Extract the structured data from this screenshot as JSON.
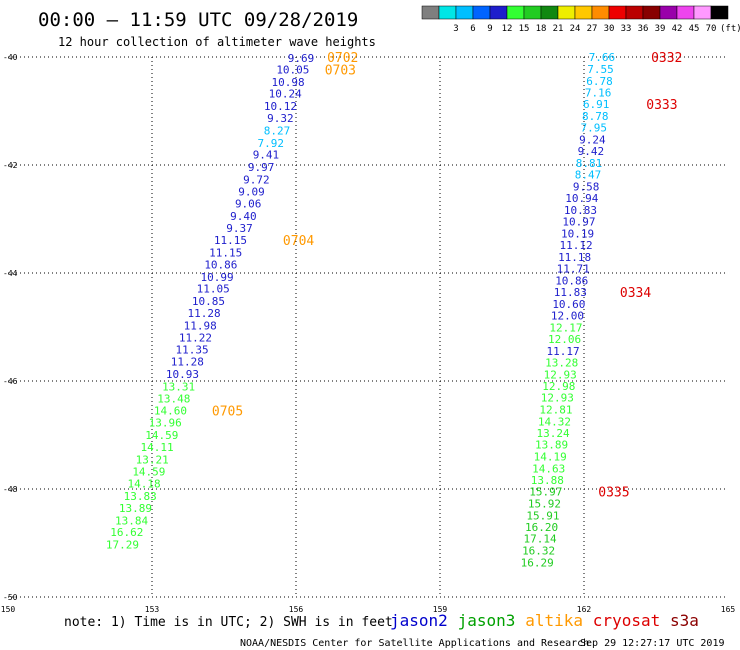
{
  "header": {
    "title": "00:00 – 11:59 UTC 09/28/2019",
    "subtitle": "12 hour collection of altimeter wave heights"
  },
  "legend": {
    "unit_label": "(ft)",
    "bins": [
      {
        "label": "",
        "color": "#7f7f7f"
      },
      {
        "label": "3",
        "color": "#00e6e6"
      },
      {
        "label": "6",
        "color": "#00bfff"
      },
      {
        "label": "9",
        "color": "#0064ff"
      },
      {
        "label": "12",
        "color": "#1e1ecc"
      },
      {
        "label": "15",
        "color": "#33ff33"
      },
      {
        "label": "18",
        "color": "#22cc22"
      },
      {
        "label": "21",
        "color": "#118811"
      },
      {
        "label": "24",
        "color": "#eeee00"
      },
      {
        "label": "27",
        "color": "#ffc800"
      },
      {
        "label": "30",
        "color": "#ff8c00"
      },
      {
        "label": "33",
        "color": "#ee0000"
      },
      {
        "label": "36",
        "color": "#bb0000"
      },
      {
        "label": "39",
        "color": "#880000"
      },
      {
        "label": "42",
        "color": "#9900aa"
      },
      {
        "label": "45",
        "color": "#ee44ee"
      },
      {
        "label": "70",
        "color": "#ff99ff"
      },
      {
        "label": "",
        "color": "#000000"
      }
    ]
  },
  "footer": {
    "note": "note: 1) Time is in UTC; 2) SWH is in feet",
    "credit": "NOAA/NESDIS Center for Satellite Applications and Research",
    "timestamp": "Sep 29 12:27:17 UTC 2019",
    "satellites": [
      {
        "name": "jason2",
        "color": "#0000cc"
      },
      {
        "name": "jason3",
        "color": "#00a000"
      },
      {
        "name": "altika",
        "color": "#ff9900"
      },
      {
        "name": "cryosat",
        "color": "#dd0000"
      },
      {
        "name": "s3a",
        "color": "#8b0000"
      }
    ]
  },
  "chart_data": {
    "type": "scatter",
    "title": "00:00 – 11:59 UTC 09/28/2019",
    "subtitle": "12 hour collection of altimeter wave heights",
    "x_domain": [
      150,
      165
    ],
    "y_domain": [
      -50,
      -40
    ],
    "x_ticks": [
      150,
      153,
      156,
      159,
      162,
      165
    ],
    "y_ticks": [
      -40,
      -42,
      -44,
      -46,
      -48,
      -50
    ],
    "x_tick_labels": [
      "150",
      "153",
      "156",
      "159",
      "162",
      "165"
    ],
    "y_tick_labels": [
      "-40",
      "-42",
      "-44",
      "-46",
      "-48",
      "-50"
    ],
    "grid": true,
    "series": [
      {
        "name": "track 1",
        "values": [
          {
            "x": 156.38,
            "y": -40.02,
            "v": "9.69",
            "color": "#1e1ecc"
          },
          {
            "x": 156.28,
            "y": -40.23,
            "v": "10.05",
            "color": "#1e1ecc"
          },
          {
            "x": 156.18,
            "y": -40.46,
            "v": "10.98",
            "color": "#1e1ecc"
          },
          {
            "x": 156.12,
            "y": -40.68,
            "v": "10.24",
            "color": "#1e1ecc"
          },
          {
            "x": 156.02,
            "y": -40.91,
            "v": "10.12",
            "color": "#1e1ecc"
          },
          {
            "x": 155.95,
            "y": -41.13,
            "v": "9.32",
            "color": "#1e1ecc"
          },
          {
            "x": 155.88,
            "y": -41.36,
            "v": "8.27",
            "color": "#00bfff"
          },
          {
            "x": 155.75,
            "y": -41.59,
            "v": "7.92",
            "color": "#00bfff"
          },
          {
            "x": 155.65,
            "y": -41.81,
            "v": "9.41",
            "color": "#1e1ecc"
          },
          {
            "x": 155.55,
            "y": -42.04,
            "v": "9.97",
            "color": "#1e1ecc"
          },
          {
            "x": 155.45,
            "y": -42.27,
            "v": "9.72",
            "color": "#1e1ecc"
          },
          {
            "x": 155.35,
            "y": -42.49,
            "v": "9.09",
            "color": "#1e1ecc"
          },
          {
            "x": 155.28,
            "y": -42.71,
            "v": "9.06",
            "color": "#1e1ecc"
          },
          {
            "x": 155.18,
            "y": -42.94,
            "v": "9.40",
            "color": "#1e1ecc"
          },
          {
            "x": 155.1,
            "y": -43.17,
            "v": "9.37",
            "color": "#1e1ecc"
          },
          {
            "x": 154.98,
            "y": -43.39,
            "v": "11.15",
            "color": "#1e1ecc"
          },
          {
            "x": 154.88,
            "y": -43.62,
            "v": "11.15",
            "color": "#1e1ecc"
          },
          {
            "x": 154.78,
            "y": -43.84,
            "v": "10.86",
            "color": "#1e1ecc"
          },
          {
            "x": 154.7,
            "y": -44.07,
            "v": "10.99",
            "color": "#1e1ecc"
          },
          {
            "x": 154.62,
            "y": -44.29,
            "v": "11.05",
            "color": "#1e1ecc"
          },
          {
            "x": 154.52,
            "y": -44.52,
            "v": "10.85",
            "color": "#1e1ecc"
          },
          {
            "x": 154.43,
            "y": -44.74,
            "v": "11.28",
            "color": "#1e1ecc"
          },
          {
            "x": 154.35,
            "y": -44.97,
            "v": "11.98",
            "color": "#1e1ecc"
          },
          {
            "x": 154.25,
            "y": -45.19,
            "v": "11.22",
            "color": "#1e1ecc"
          },
          {
            "x": 154.18,
            "y": -45.42,
            "v": "11.35",
            "color": "#1e1ecc"
          },
          {
            "x": 154.08,
            "y": -45.64,
            "v": "11.28",
            "color": "#1e1ecc"
          },
          {
            "x": 153.98,
            "y": -45.87,
            "v": "10.93",
            "color": "#1e1ecc"
          },
          {
            "x": 153.9,
            "y": -46.1,
            "v": "13.31",
            "color": "#33ff33"
          },
          {
            "x": 153.8,
            "y": -46.32,
            "v": "13.48",
            "color": "#33ff33"
          },
          {
            "x": 153.73,
            "y": -46.55,
            "v": "14.60",
            "color": "#33ff33"
          },
          {
            "x": 153.62,
            "y": -46.77,
            "v": "13.96",
            "color": "#33ff33"
          },
          {
            "x": 153.55,
            "y": -47.0,
            "v": "14.59",
            "color": "#33ff33"
          },
          {
            "x": 153.45,
            "y": -47.22,
            "v": "14.11",
            "color": "#33ff33"
          },
          {
            "x": 153.35,
            "y": -47.45,
            "v": "13.21",
            "color": "#33ff33"
          },
          {
            "x": 153.28,
            "y": -47.68,
            "v": "14.59",
            "color": "#33ff33"
          },
          {
            "x": 153.18,
            "y": -47.9,
            "v": "14.18",
            "color": "#33ff33"
          },
          {
            "x": 153.1,
            "y": -48.13,
            "v": "13.83",
            "color": "#33ff33"
          },
          {
            "x": 153.0,
            "y": -48.35,
            "v": "13.89",
            "color": "#33ff33"
          },
          {
            "x": 152.92,
            "y": -48.58,
            "v": "13.84",
            "color": "#33ff33"
          },
          {
            "x": 152.82,
            "y": -48.8,
            "v": "16.62",
            "color": "#33ff33"
          },
          {
            "x": 152.73,
            "y": -49.03,
            "v": "17.29",
            "color": "#33ff33"
          }
        ]
      },
      {
        "name": "track 2",
        "values": [
          {
            "x": 162.65,
            "y": -40.0,
            "v": "7.66",
            "color": "#00bfff"
          },
          {
            "x": 162.62,
            "y": -40.22,
            "v": "7.55",
            "color": "#00bfff"
          },
          {
            "x": 162.6,
            "y": -40.44,
            "v": "6.78",
            "color": "#00bfff"
          },
          {
            "x": 162.57,
            "y": -40.66,
            "v": "7.16",
            "color": "#00bfff"
          },
          {
            "x": 162.53,
            "y": -40.87,
            "v": "6.91",
            "color": "#00bfff"
          },
          {
            "x": 162.51,
            "y": -41.09,
            "v": "8.78",
            "color": "#00bfff"
          },
          {
            "x": 162.48,
            "y": -41.31,
            "v": "7.95",
            "color": "#00bfff"
          },
          {
            "x": 162.45,
            "y": -41.53,
            "v": "9.24",
            "color": "#1e1ecc"
          },
          {
            "x": 162.42,
            "y": -41.74,
            "v": "9.42",
            "color": "#1e1ecc"
          },
          {
            "x": 162.38,
            "y": -41.96,
            "v": "8.81",
            "color": "#00bfff"
          },
          {
            "x": 162.36,
            "y": -42.18,
            "v": "8.47",
            "color": "#00bfff"
          },
          {
            "x": 162.32,
            "y": -42.4,
            "v": "9.58",
            "color": "#1e1ecc"
          },
          {
            "x": 162.3,
            "y": -42.61,
            "v": "10.94",
            "color": "#1e1ecc"
          },
          {
            "x": 162.27,
            "y": -42.83,
            "v": "10.83",
            "color": "#1e1ecc"
          },
          {
            "x": 162.24,
            "y": -43.05,
            "v": "10.97",
            "color": "#1e1ecc"
          },
          {
            "x": 162.21,
            "y": -43.27,
            "v": "10.19",
            "color": "#1e1ecc"
          },
          {
            "x": 162.18,
            "y": -43.48,
            "v": "11.12",
            "color": "#1e1ecc"
          },
          {
            "x": 162.15,
            "y": -43.7,
            "v": "11.18",
            "color": "#1e1ecc"
          },
          {
            "x": 162.12,
            "y": -43.92,
            "v": "11.71",
            "color": "#1e1ecc"
          },
          {
            "x": 162.09,
            "y": -44.14,
            "v": "10.86",
            "color": "#1e1ecc"
          },
          {
            "x": 162.06,
            "y": -44.35,
            "v": "11.83",
            "color": "#1e1ecc"
          },
          {
            "x": 162.03,
            "y": -44.57,
            "v": "10.60",
            "color": "#1e1ecc"
          },
          {
            "x": 162.0,
            "y": -44.79,
            "v": "12.00",
            "color": "#1e1ecc"
          },
          {
            "x": 161.97,
            "y": -45.01,
            "v": "12.17",
            "color": "#33ff33"
          },
          {
            "x": 161.94,
            "y": -45.22,
            "v": "12.06",
            "color": "#33ff33"
          },
          {
            "x": 161.91,
            "y": -45.44,
            "v": "11.17",
            "color": "#1e1ecc"
          },
          {
            "x": 161.88,
            "y": -45.66,
            "v": "13.28",
            "color": "#33ff33"
          },
          {
            "x": 161.85,
            "y": -45.88,
            "v": "12.93",
            "color": "#33ff33"
          },
          {
            "x": 161.82,
            "y": -46.09,
            "v": "12.98",
            "color": "#33ff33"
          },
          {
            "x": 161.79,
            "y": -46.31,
            "v": "12.93",
            "color": "#33ff33"
          },
          {
            "x": 161.76,
            "y": -46.53,
            "v": "12.81",
            "color": "#33ff33"
          },
          {
            "x": 161.73,
            "y": -46.75,
            "v": "14.32",
            "color": "#33ff33"
          },
          {
            "x": 161.7,
            "y": -46.96,
            "v": "13.24",
            "color": "#33ff33"
          },
          {
            "x": 161.67,
            "y": -47.18,
            "v": "13.89",
            "color": "#33ff33"
          },
          {
            "x": 161.64,
            "y": -47.4,
            "v": "14.19",
            "color": "#33ff33"
          },
          {
            "x": 161.61,
            "y": -47.62,
            "v": "14.63",
            "color": "#33ff33"
          },
          {
            "x": 161.58,
            "y": -47.83,
            "v": "13.88",
            "color": "#33ff33"
          },
          {
            "x": 161.55,
            "y": -48.05,
            "v": "15.97",
            "color": "#22cc22"
          },
          {
            "x": 161.52,
            "y": -48.27,
            "v": "15.92",
            "color": "#22cc22"
          },
          {
            "x": 161.49,
            "y": -48.49,
            "v": "15.91",
            "color": "#22cc22"
          },
          {
            "x": 161.46,
            "y": -48.7,
            "v": "16.20",
            "color": "#22cc22"
          },
          {
            "x": 161.43,
            "y": -48.92,
            "v": "17.14",
            "color": "#22cc22"
          },
          {
            "x": 161.4,
            "y": -49.14,
            "v": "16.32",
            "color": "#22cc22"
          },
          {
            "x": 161.37,
            "y": -49.36,
            "v": "16.29",
            "color": "#22cc22"
          }
        ]
      }
    ],
    "annotations": [
      {
        "label": "0702",
        "x": 157.3,
        "y": -40.0,
        "color": "#ff9900"
      },
      {
        "label": "0703",
        "x": 157.25,
        "y": -40.23,
        "color": "#ff9900"
      },
      {
        "label": "0704",
        "x": 156.38,
        "y": -43.39,
        "color": "#ff9900"
      },
      {
        "label": "0705",
        "x": 154.9,
        "y": -46.55,
        "color": "#ff9900"
      },
      {
        "label": "0332",
        "x": 164.05,
        "y": -40.0,
        "color": "#dd0000"
      },
      {
        "label": "0333",
        "x": 163.95,
        "y": -40.87,
        "color": "#dd0000"
      },
      {
        "label": "0334",
        "x": 163.4,
        "y": -44.35,
        "color": "#dd0000"
      },
      {
        "label": "0335",
        "x": 162.95,
        "y": -48.05,
        "color": "#dd0000"
      }
    ]
  }
}
